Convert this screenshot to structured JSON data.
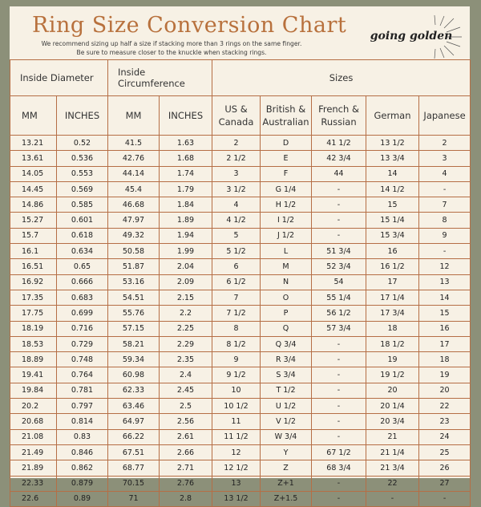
{
  "title": "Ring Size Conversion Chart",
  "note_line1": "We recommend sizing up half a size if stacking more than 3 rings on the same finger.",
  "note_line2": "Be sure to measure closer to the knuckle when stacking rings.",
  "logo_text": "going golden",
  "colors": {
    "frame": "#8c9079",
    "card": "#f7f1e5",
    "title": "#b8713d",
    "rule": "#b56e45"
  },
  "groups": {
    "inside_diameter": "Inside Diameter",
    "inside_circumference": "Inside Circumference",
    "sizes": "Sizes"
  },
  "columns": [
    "MM",
    "INCHES",
    "MM",
    "INCHES",
    "US &\nCanada",
    "British &\nAustralian",
    "French &\nRussian",
    "German",
    "Japanese"
  ],
  "rows": [
    [
      "13.21",
      "0.52",
      "41.5",
      "1.63",
      "2",
      "D",
      "41 1/2",
      "13 1/2",
      "2"
    ],
    [
      "13.61",
      "0.536",
      "42.76",
      "1.68",
      "2 1/2",
      "E",
      "42 3/4",
      "13 3/4",
      "3"
    ],
    [
      "14.05",
      "0.553",
      "44.14",
      "1.74",
      "3",
      "F",
      "44",
      "14",
      "4"
    ],
    [
      "14.45",
      "0.569",
      "45.4",
      "1.79",
      "3 1/2",
      "G 1/4",
      "-",
      "14 1/2",
      "-"
    ],
    [
      "14.86",
      "0.585",
      "46.68",
      "1.84",
      "4",
      "H 1/2",
      "-",
      "15",
      "7"
    ],
    [
      "15.27",
      "0.601",
      "47.97",
      "1.89",
      "4 1/2",
      "I 1/2",
      "-",
      "15 1/4",
      "8"
    ],
    [
      "15.7",
      "0.618",
      "49.32",
      "1.94",
      "5",
      "J 1/2",
      "-",
      "15 3/4",
      "9"
    ],
    [
      "16.1",
      "0.634",
      "50.58",
      "1.99",
      "5 1/2",
      "L",
      "51 3/4",
      "16",
      "-"
    ],
    [
      "16.51",
      "0.65",
      "51.87",
      "2.04",
      "6",
      "M",
      "52 3/4",
      "16 1/2",
      "12"
    ],
    [
      "16.92",
      "0.666",
      "53.16",
      "2.09",
      "6 1/2",
      "N",
      "54",
      "17",
      "13"
    ],
    [
      "17.35",
      "0.683",
      "54.51",
      "2.15",
      "7",
      "O",
      "55 1/4",
      "17 1/4",
      "14"
    ],
    [
      "17.75",
      "0.699",
      "55.76",
      "2.2",
      "7 1/2",
      "P",
      "56 1/2",
      "17 3/4",
      "15"
    ],
    [
      "18.19",
      "0.716",
      "57.15",
      "2.25",
      "8",
      "Q",
      "57 3/4",
      "18",
      "16"
    ],
    [
      "18.53",
      "0.729",
      "58.21",
      "2.29",
      "8 1/2",
      "Q 3/4",
      "-",
      "18 1/2",
      "17"
    ],
    [
      "18.89",
      "0.748",
      "59.34",
      "2.35",
      "9",
      "R 3/4",
      "-",
      "19",
      "18"
    ],
    [
      "19.41",
      "0.764",
      "60.98",
      "2.4",
      "9 1/2",
      "S 3/4",
      "-",
      "19 1/2",
      "19"
    ],
    [
      "19.84",
      "0.781",
      "62.33",
      "2.45",
      "10",
      "T 1/2",
      "-",
      "20",
      "20"
    ],
    [
      "20.2",
      "0.797",
      "63.46",
      "2.5",
      "10 1/2",
      "U 1/2",
      "-",
      "20 1/4",
      "22"
    ],
    [
      "20.68",
      "0.814",
      "64.97",
      "2.56",
      "11",
      "V 1/2",
      "-",
      "20 3/4",
      "23"
    ],
    [
      "21.08",
      "0.83",
      "66.22",
      "2.61",
      "11 1/2",
      "W 3/4",
      "-",
      "21",
      "24"
    ],
    [
      "21.49",
      "0.846",
      "67.51",
      "2.66",
      "12",
      "Y",
      "67 1/2",
      "21 1/4",
      "25"
    ],
    [
      "21.89",
      "0.862",
      "68.77",
      "2.71",
      "12 1/2",
      "Z",
      "68 3/4",
      "21 3/4",
      "26"
    ],
    [
      "22.33",
      "0.879",
      "70.15",
      "2.76",
      "13",
      "Z+1",
      "-",
      "22",
      "27"
    ],
    [
      "22.6",
      "0.89",
      "71",
      "2.8",
      "13 1/2",
      "Z+1.5",
      "-",
      "-",
      "-"
    ]
  ]
}
